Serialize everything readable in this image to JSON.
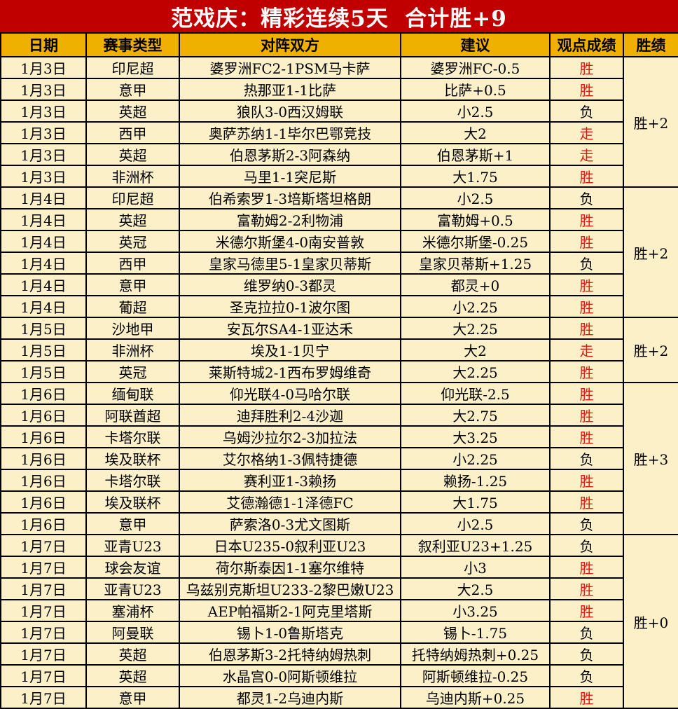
{
  "banner": {
    "title": "范戏庆：精彩连续5天  合计胜+9"
  },
  "colors": {
    "banner_bg": "#C00000",
    "header_bg": "#F0B000",
    "row_bg": "#FCF0C8",
    "streak_bg": "#C00000",
    "grid_line": "#000000",
    "result_colors": {
      "胜": "#E8150B",
      "走": "#E8150B",
      "负": "#000000"
    }
  },
  "table": {
    "columns": [
      "日期",
      "赛事类型",
      "对阵双方",
      "建议",
      "观点成绩",
      "胜绩"
    ],
    "rows": [
      {
        "date": "1月3日",
        "league": "印尼超",
        "match": "婆罗洲FC2-1PSM马卡萨",
        "tip": "婆罗洲FC-0.5",
        "result": "胜"
      },
      {
        "date": "1月3日",
        "league": "意甲",
        "match": "热那亚1-1比萨",
        "tip": "比萨+0.5",
        "result": "胜"
      },
      {
        "date": "1月3日",
        "league": "英超",
        "match": "狼队3-0西汉姆联",
        "tip": "小2.5",
        "result": "负"
      },
      {
        "date": "1月3日",
        "league": "西甲",
        "match": "奥萨苏纳1-1毕尔巴鄂竞技",
        "tip": "大2",
        "result": "走"
      },
      {
        "date": "1月3日",
        "league": "英超",
        "match": "伯恩茅斯2-3阿森纳",
        "tip": "伯恩茅斯+1",
        "result": "走"
      },
      {
        "date": "1月3日",
        "league": "非洲杯",
        "match": "马里1-1突尼斯",
        "tip": "大1.75",
        "result": "胜"
      },
      {
        "date": "1月4日",
        "league": "印尼超",
        "match": "伯希索罗1-3培斯塔坦格朗",
        "tip": "小2.5",
        "result": "负"
      },
      {
        "date": "1月4日",
        "league": "英超",
        "match": "富勒姆2-2利物浦",
        "tip": "富勒姆+0.5",
        "result": "胜"
      },
      {
        "date": "1月4日",
        "league": "英冠",
        "match": "米德尔斯堡4-0南安普敦",
        "tip": "米德尔斯堡-0.25",
        "result": "胜"
      },
      {
        "date": "1月4日",
        "league": "西甲",
        "match": "皇家马德里5-1皇家贝蒂斯",
        "tip": "皇家贝蒂斯+1.25",
        "result": "负"
      },
      {
        "date": "1月4日",
        "league": "意甲",
        "match": "维罗纳0-3都灵",
        "tip": "都灵+0",
        "result": "胜"
      },
      {
        "date": "1月4日",
        "league": "葡超",
        "match": "圣克拉拉0-1波尔图",
        "tip": "小2.25",
        "result": "胜"
      },
      {
        "date": "1月5日",
        "league": "沙地甲",
        "match": "安瓦尔SA4-1亚达禾",
        "tip": "大2.25",
        "result": "胜"
      },
      {
        "date": "1月5日",
        "league": "非洲杯",
        "match": "埃及1-1贝宁",
        "tip": "大2",
        "result": "走"
      },
      {
        "date": "1月5日",
        "league": "英冠",
        "match": "莱斯特城2-1西布罗姆维奇",
        "tip": "大2.25",
        "result": "胜"
      },
      {
        "date": "1月6日",
        "league": "缅甸联",
        "match": "仰光联4-0马哈尔联",
        "tip": "仰光联-2.5",
        "result": "胜"
      },
      {
        "date": "1月6日",
        "league": "阿联酋超",
        "match": "迪拜胜利2-4沙迦",
        "tip": "大2.75",
        "result": "胜"
      },
      {
        "date": "1月6日",
        "league": "卡塔尔联",
        "match": "乌姆沙拉尔2-3加拉法",
        "tip": "大3.25",
        "result": "胜"
      },
      {
        "date": "1月6日",
        "league": "埃及联杯",
        "match": "艾尔格纳1-3佩特捷德",
        "tip": "小2.25",
        "result": "负"
      },
      {
        "date": "1月6日",
        "league": "卡塔尔联",
        "match": "赛利亚1-3赖扬",
        "tip": "赖扬-1.25",
        "result": "胜"
      },
      {
        "date": "1月6日",
        "league": "埃及联杯",
        "match": "艾德瀚德1-1泽德FC",
        "tip": "大1.75",
        "result": "胜"
      },
      {
        "date": "1月6日",
        "league": "意甲",
        "match": "萨索洛0-3尤文图斯",
        "tip": "小2.5",
        "result": "负"
      },
      {
        "date": "1月7日",
        "league": "亚青U23",
        "match": "日本U235-0叙利亚U23",
        "tip": "叙利亚U23+1.25",
        "result": "负"
      },
      {
        "date": "1月7日",
        "league": "球会友谊",
        "match": "荷尔斯泰因1-1塞尔维特",
        "tip": "小3",
        "result": "胜"
      },
      {
        "date": "1月7日",
        "league": "亚青U23",
        "match": "乌兹别克斯坦U233-2黎巴嫩U23",
        "tip": "大2.5",
        "result": "胜"
      },
      {
        "date": "1月7日",
        "league": "塞浦杯",
        "match": "AEP帕福斯2-1阿克里塔斯",
        "tip": "小3.25",
        "result": "胜"
      },
      {
        "date": "1月7日",
        "league": "阿曼联",
        "match": "锡卜1-0鲁斯塔克",
        "tip": "锡卜-1.75",
        "result": "负"
      },
      {
        "date": "1月7日",
        "league": "英超",
        "match": "伯恩茅斯3-2托特纳姆热刺",
        "tip": "托特纳姆热刺+0.25",
        "result": "负"
      },
      {
        "date": "1月7日",
        "league": "英超",
        "match": "水晶宫0-0阿斯顿维拉",
        "tip": "阿斯顿维拉-0.25",
        "result": "负"
      },
      {
        "date": "1月7日",
        "league": "意甲",
        "match": "都灵1-2乌迪内斯",
        "tip": "乌迪内斯+0.25",
        "result": "胜"
      }
    ],
    "streak_groups": [
      {
        "label": "胜+2",
        "span": 6
      },
      {
        "label": "胜+2",
        "span": 6
      },
      {
        "label": "胜+2",
        "span": 3
      },
      {
        "label": "胜+3",
        "span": 7
      },
      {
        "label": "胜+0",
        "span": 8
      }
    ]
  }
}
